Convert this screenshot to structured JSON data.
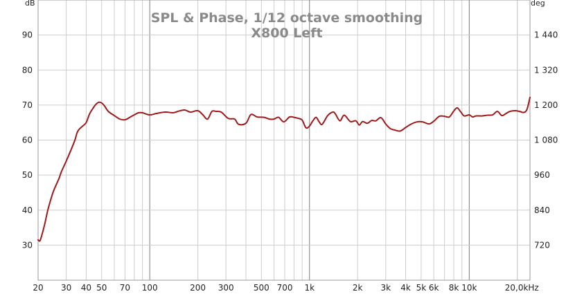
{
  "chart_data": {
    "type": "line",
    "title": "SPL & Phase, 1/12 octave smoothing",
    "subtitle": "X800 Left",
    "left_unit": "dB",
    "right_unit": "deg",
    "x_scale": "log",
    "xlim": [
      20,
      24000
    ],
    "ylim": [
      20,
      100
    ],
    "y2lim": [
      600,
      1560
    ],
    "grid": true,
    "x_ticks": [
      {
        "v": 20,
        "label": "20"
      },
      {
        "v": 30,
        "label": "30"
      },
      {
        "v": 40,
        "label": "40"
      },
      {
        "v": 50,
        "label": "50"
      },
      {
        "v": 70,
        "label": "70"
      },
      {
        "v": 100,
        "label": "100"
      },
      {
        "v": 200,
        "label": "200"
      },
      {
        "v": 300,
        "label": "300"
      },
      {
        "v": 500,
        "label": "500"
      },
      {
        "v": 700,
        "label": "700"
      },
      {
        "v": 1000,
        "label": "1k"
      },
      {
        "v": 2000,
        "label": "2k"
      },
      {
        "v": 3000,
        "label": "3k"
      },
      {
        "v": 4000,
        "label": "4k"
      },
      {
        "v": 5000,
        "label": "5k"
      },
      {
        "v": 6000,
        "label": "6k"
      },
      {
        "v": 8000,
        "label": "8k"
      },
      {
        "v": 10000,
        "label": "10k"
      },
      {
        "v": 20000,
        "label": "20,0kHz"
      }
    ],
    "y_ticks": [
      {
        "v": 30,
        "label": "30"
      },
      {
        "v": 40,
        "label": "40"
      },
      {
        "v": 50,
        "label": "50"
      },
      {
        "v": 60,
        "label": "60"
      },
      {
        "v": 70,
        "label": "70"
      },
      {
        "v": 80,
        "label": "80"
      },
      {
        "v": 90,
        "label": "90"
      }
    ],
    "y2_ticks": [
      {
        "v": 720,
        "label": "720"
      },
      {
        "v": 840,
        "label": "840"
      },
      {
        "v": 960,
        "label": "960"
      },
      {
        "v": 1080,
        "label": "1 080"
      },
      {
        "v": 1200,
        "label": "1 200"
      },
      {
        "v": 1320,
        "label": "1 320"
      },
      {
        "v": 1440,
        "label": "1 440"
      }
    ],
    "series": [
      {
        "color": "#a01818",
        "points": [
          [
            20,
            31.5
          ],
          [
            20.5,
            31.2
          ],
          [
            21,
            32.5
          ],
          [
            22,
            36
          ],
          [
            23,
            40
          ],
          [
            24,
            43
          ],
          [
            25,
            45.5
          ],
          [
            27,
            49
          ],
          [
            28,
            51
          ],
          [
            30,
            54
          ],
          [
            32,
            57
          ],
          [
            34,
            60
          ],
          [
            35,
            62
          ],
          [
            36,
            63
          ],
          [
            38,
            64
          ],
          [
            40,
            65
          ],
          [
            42,
            67.5
          ],
          [
            44,
            69
          ],
          [
            46,
            70.2
          ],
          [
            48,
            70.8
          ],
          [
            50,
            70.6
          ],
          [
            52,
            69.8
          ],
          [
            55,
            68.2
          ],
          [
            60,
            67
          ],
          [
            65,
            66
          ],
          [
            70,
            65.8
          ],
          [
            75,
            66.5
          ],
          [
            80,
            67.2
          ],
          [
            85,
            67.8
          ],
          [
            90,
            67.8
          ],
          [
            100,
            67.2
          ],
          [
            110,
            67.6
          ],
          [
            125,
            68
          ],
          [
            140,
            67.8
          ],
          [
            150,
            68.2
          ],
          [
            165,
            68.6
          ],
          [
            180,
            68
          ],
          [
            200,
            68.4
          ],
          [
            215,
            67.2
          ],
          [
            230,
            66
          ],
          [
            245,
            68.2
          ],
          [
            260,
            68.2
          ],
          [
            280,
            68
          ],
          [
            310,
            66.2
          ],
          [
            340,
            66
          ],
          [
            360,
            64.5
          ],
          [
            400,
            64.8
          ],
          [
            430,
            67.3
          ],
          [
            470,
            66.6
          ],
          [
            520,
            66.5
          ],
          [
            560,
            66
          ],
          [
            600,
            66
          ],
          [
            640,
            66.5
          ],
          [
            690,
            65.2
          ],
          [
            750,
            66.6
          ],
          [
            800,
            66.5
          ],
          [
            850,
            66.2
          ],
          [
            900,
            65.7
          ],
          [
            950,
            63.5
          ],
          [
            1000,
            64
          ],
          [
            1050,
            65.5
          ],
          [
            1100,
            66.5
          ],
          [
            1150,
            65.2
          ],
          [
            1200,
            64.5
          ],
          [
            1300,
            67
          ],
          [
            1400,
            68
          ],
          [
            1450,
            67.5
          ],
          [
            1550,
            65.5
          ],
          [
            1650,
            67.1
          ],
          [
            1800,
            65.3
          ],
          [
            1950,
            65.5
          ],
          [
            2050,
            64.3
          ],
          [
            2150,
            65.3
          ],
          [
            2300,
            64.8
          ],
          [
            2450,
            65.6
          ],
          [
            2600,
            65.5
          ],
          [
            2800,
            66.4
          ],
          [
            3000,
            64.6
          ],
          [
            3200,
            63.3
          ],
          [
            3400,
            62.9
          ],
          [
            3700,
            62.6
          ],
          [
            4000,
            63.6
          ],
          [
            4300,
            64.5
          ],
          [
            4700,
            65.2
          ],
          [
            5100,
            65.2
          ],
          [
            5600,
            64.6
          ],
          [
            6000,
            65.4
          ],
          [
            6500,
            66.8
          ],
          [
            7000,
            66.8
          ],
          [
            7500,
            66.6
          ],
          [
            8000,
            68.3
          ],
          [
            8400,
            69.2
          ],
          [
            8800,
            68.2
          ],
          [
            9300,
            66.9
          ],
          [
            10000,
            67.2
          ],
          [
            10500,
            66.6
          ],
          [
            11000,
            66.9
          ],
          [
            12000,
            66.9
          ],
          [
            13000,
            67.1
          ],
          [
            14000,
            67.2
          ],
          [
            15000,
            68.2
          ],
          [
            16000,
            67
          ],
          [
            17000,
            67.6
          ],
          [
            18000,
            68.2
          ],
          [
            19500,
            68.4
          ],
          [
            21000,
            68.1
          ],
          [
            22000,
            67.9
          ],
          [
            23000,
            68.8
          ],
          [
            24000,
            72.2
          ]
        ]
      }
    ]
  }
}
